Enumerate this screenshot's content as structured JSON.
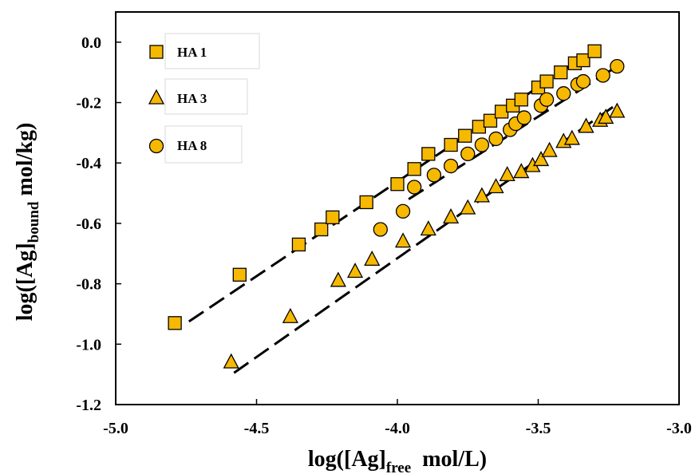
{
  "chart_data": {
    "type": "scatter",
    "title": "",
    "xlabel": {
      "prefix": "log([Ag]",
      "sub": "free",
      "suffix": "  mol/L)"
    },
    "ylabel": {
      "prefix": "log([Ag]",
      "sub": "bound",
      "suffix": " mol/kg)"
    },
    "xlim": [
      -5.0,
      -3.0
    ],
    "ylim": [
      -1.2,
      0.1
    ],
    "x_ticks": [
      -5.0,
      -4.5,
      -4.0,
      -3.5,
      -3.0
    ],
    "x_tick_labels": [
      "-5.0",
      "-4.5",
      "-4.0",
      "-3.5",
      "-3.0"
    ],
    "y_ticks": [
      -1.2,
      -1.0,
      -0.8,
      -0.6,
      -0.4,
      -0.2,
      0.0
    ],
    "y_tick_labels": [
      "-1.2",
      "-1.0",
      "-0.8",
      "-0.6",
      "-0.4",
      "-0.2",
      "0.0"
    ],
    "grid": false,
    "legend_position": "top-left",
    "marker_fill": "#F7B800",
    "marker_stroke": "#000000",
    "series": [
      {
        "name": "HA 1",
        "marker": "square",
        "x": [
          -4.79,
          -4.56,
          -4.35,
          -4.27,
          -4.23,
          -4.11,
          -4.0,
          -3.94,
          -3.89,
          -3.81,
          -3.76,
          -3.71,
          -3.67,
          -3.63,
          -3.59,
          -3.56,
          -3.5,
          -3.47,
          -3.42,
          -3.37,
          -3.34,
          -3.3
        ],
        "y": [
          -0.93,
          -0.77,
          -0.67,
          -0.62,
          -0.58,
          -0.53,
          -0.47,
          -0.42,
          -0.37,
          -0.34,
          -0.31,
          -0.28,
          -0.26,
          -0.23,
          -0.21,
          -0.19,
          -0.15,
          -0.13,
          -0.1,
          -0.07,
          -0.06,
          -0.03
        ]
      },
      {
        "name": "HA 3",
        "marker": "triangle",
        "x": [
          -4.59,
          -4.38,
          -4.21,
          -4.15,
          -4.09,
          -3.98,
          -3.89,
          -3.81,
          -3.75,
          -3.7,
          -3.65,
          -3.61,
          -3.56,
          -3.52,
          -3.49,
          -3.46,
          -3.41,
          -3.38,
          -3.33,
          -3.28,
          -3.26,
          -3.22
        ],
        "y": [
          -1.06,
          -0.91,
          -0.79,
          -0.76,
          -0.72,
          -0.66,
          -0.62,
          -0.58,
          -0.55,
          -0.51,
          -0.48,
          -0.44,
          -0.43,
          -0.41,
          -0.39,
          -0.36,
          -0.33,
          -0.32,
          -0.28,
          -0.26,
          -0.25,
          -0.23
        ]
      },
      {
        "name": "HA 8",
        "marker": "circle",
        "x": [
          -4.06,
          -3.98,
          -3.94,
          -3.87,
          -3.81,
          -3.75,
          -3.7,
          -3.65,
          -3.6,
          -3.58,
          -3.55,
          -3.49,
          -3.47,
          -3.41,
          -3.36,
          -3.34,
          -3.27,
          -3.22
        ],
        "y": [
          -0.62,
          -0.56,
          -0.48,
          -0.44,
          -0.41,
          -0.37,
          -0.34,
          -0.32,
          -0.29,
          -0.27,
          -0.25,
          -0.21,
          -0.19,
          -0.17,
          -0.14,
          -0.13,
          -0.11,
          -0.08
        ]
      }
    ],
    "fit_lines": [
      {
        "series": "HA 1",
        "x": [
          -4.74,
          -3.35
        ],
        "y": [
          -0.925,
          -0.055
        ]
      },
      {
        "series": "HA 8",
        "x": [
          -3.96,
          -3.22
        ],
        "y": [
          -0.52,
          -0.08
        ]
      },
      {
        "series": "HA 3",
        "x": [
          -4.58,
          -3.22
        ],
        "y": [
          -1.095,
          -0.205
        ]
      }
    ]
  }
}
